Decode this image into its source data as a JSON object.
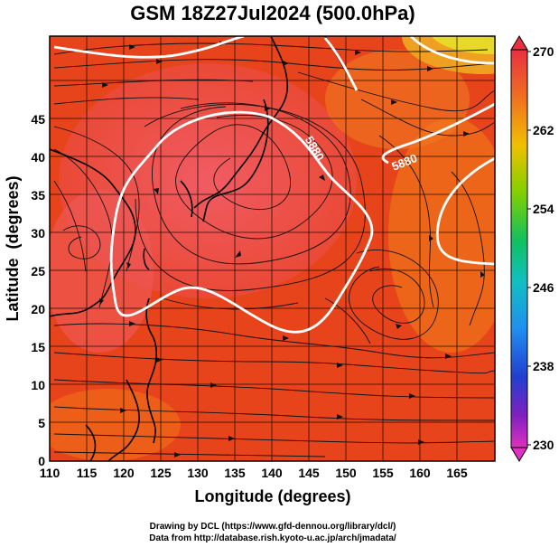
{
  "title": "GSM 18Z27Jul2024 (500.0hPa)",
  "xlabel": "Longitude (degrees)",
  "ylabel": "Latitude  (degrees)",
  "credits": [
    "Drawing by DCL (https://www.gfd-dennou.org/library/dcl/)",
    "Data from http://database.rish.kyoto-u.ac.jp/arch/jmadata/"
  ],
  "map": {
    "lon_range": [
      110,
      170
    ],
    "lat_range": [
      0,
      50
    ],
    "x_ticks": [
      "110",
      "115",
      "120",
      "125",
      "130",
      "135",
      "140",
      "145",
      "150",
      "155",
      "160",
      "165"
    ],
    "y_ticks": [
      "0",
      "5",
      "10",
      "15",
      "20",
      "25",
      "30",
      "35",
      "40",
      "45"
    ],
    "contour_labels": [
      "5880",
      "5880"
    ],
    "field_colors": {
      "warm": "#e8401a",
      "hot": "#f06070",
      "orange": "#f07818",
      "yellow": "#e8e020"
    }
  },
  "colorbar": {
    "ticks": [
      "270",
      "262",
      "254",
      "246",
      "238",
      "230"
    ],
    "values": [
      270,
      262,
      254,
      246,
      238,
      230
    ],
    "colors": [
      "#e83030",
      "#f07020",
      "#f0c000",
      "#80d000",
      "#10c060",
      "#10c0c0",
      "#2090f0",
      "#2040d0",
      "#6020c0",
      "#c020c0"
    ]
  }
}
